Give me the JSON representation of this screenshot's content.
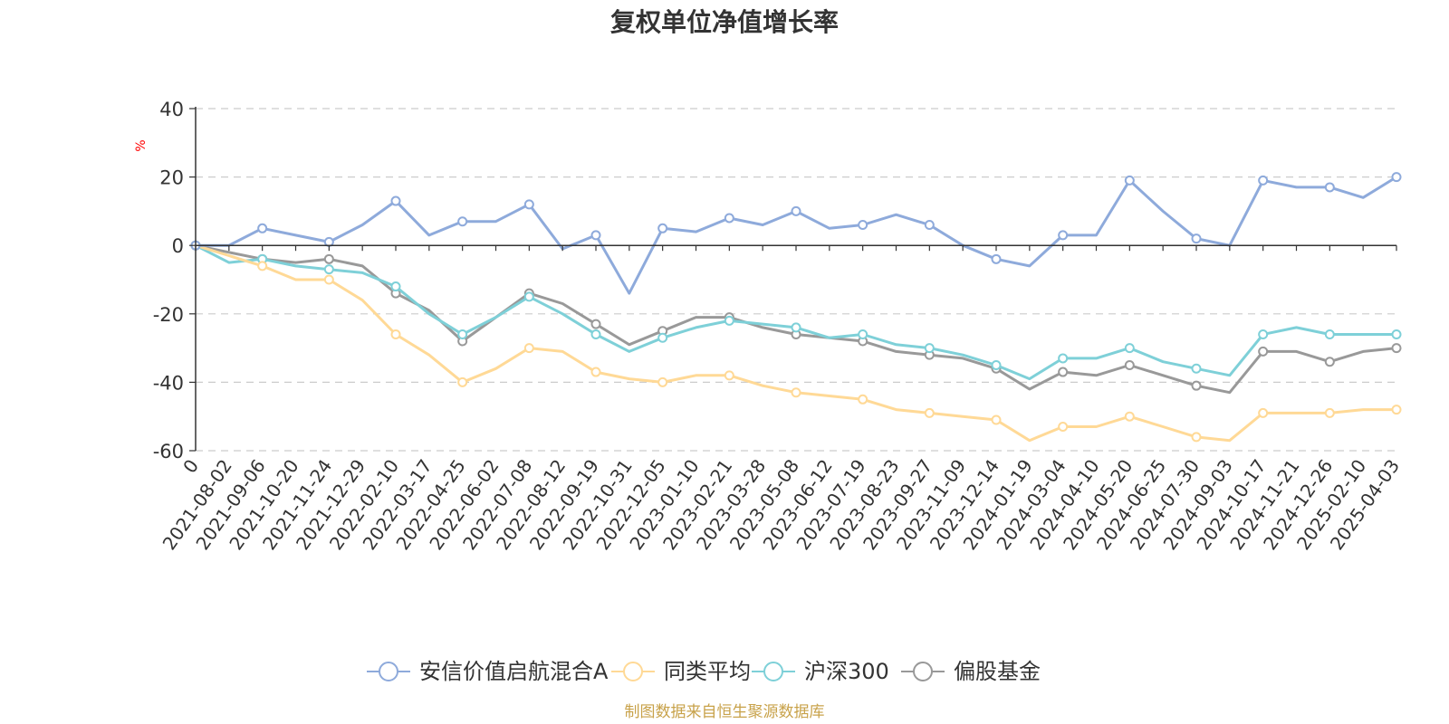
{
  "chart_data": {
    "type": "line",
    "title": "复权单位净值增长率",
    "ylabel": "%",
    "ylim": [
      -60,
      40
    ],
    "yticks": [
      40,
      20,
      0,
      -20,
      -40,
      -60
    ],
    "categories": [
      "0",
      "2021-08-02",
      "2021-09-06",
      "2021-10-20",
      "2021-11-24",
      "2021-12-29",
      "2022-02-10",
      "2022-03-17",
      "2022-04-25",
      "2022-06-02",
      "2022-07-08",
      "2022-08-12",
      "2022-09-19",
      "2022-10-31",
      "2022-12-05",
      "2023-01-10",
      "2023-02-21",
      "2023-03-28",
      "2023-05-08",
      "2023-06-12",
      "2023-07-19",
      "2023-08-23",
      "2023-09-27",
      "2023-11-09",
      "2023-12-14",
      "2024-01-19",
      "2024-03-04",
      "2024-04-10",
      "2024-05-20",
      "2024-06-25",
      "2024-07-30",
      "2024-09-03",
      "2024-10-17",
      "2024-11-21",
      "2024-12-26",
      "2025-02-10",
      "2025-04-03"
    ],
    "series": [
      {
        "name": "安信价值启航混合A",
        "color": "#8eaadb",
        "values": [
          0,
          0,
          5,
          3,
          1,
          6,
          13,
          3,
          7,
          7,
          12,
          -1,
          3,
          -14,
          5,
          4,
          8,
          6,
          10,
          5,
          6,
          9,
          6,
          0,
          -4,
          -6,
          3,
          3,
          19,
          10,
          2,
          0,
          19,
          17,
          17,
          14,
          20
        ]
      },
      {
        "name": "同类平均",
        "color": "#ffd996",
        "values": [
          0,
          -3,
          -6,
          -10,
          -10,
          -16,
          -26,
          -32,
          -40,
          -36,
          -30,
          -31,
          -37,
          -39,
          -40,
          -38,
          -38,
          -41,
          -43,
          -44,
          -45,
          -48,
          -49,
          -50,
          -51,
          -57,
          -53,
          -53,
          -50,
          -53,
          -56,
          -57,
          -49,
          -49,
          -49,
          -48,
          -48
        ]
      },
      {
        "name": "沪深300",
        "color": "#7ed0d8",
        "values": [
          0,
          -5,
          -4,
          -6,
          -7,
          -8,
          -12,
          -20,
          -26,
          -21,
          -15,
          -20,
          -26,
          -31,
          -27,
          -24,
          -22,
          -23,
          -24,
          -27,
          -26,
          -29,
          -30,
          -32,
          -35,
          -39,
          -33,
          -33,
          -30,
          -34,
          -36,
          -38,
          -26,
          -24,
          -26,
          -26,
          -26
        ]
      },
      {
        "name": "偏股基金",
        "color": "#999999",
        "values": [
          0,
          -2,
          -4,
          -5,
          -4,
          -6,
          -14,
          -19,
          -28,
          -21,
          -14,
          -17,
          -23,
          -29,
          -25,
          -21,
          -21,
          -24,
          -26,
          -27,
          -28,
          -31,
          -32,
          -33,
          -36,
          -42,
          -37,
          -38,
          -35,
          -38,
          -41,
          -43,
          -31,
          -31,
          -34,
          -31,
          -30
        ]
      }
    ]
  },
  "footer": {
    "source": "制图数据来自恒生聚源数据库"
  },
  "colors": {
    "title": "#333333",
    "axis": "#333333",
    "grid": "#cccccc",
    "ylabel": "#ff0000",
    "source": "#c8a24a"
  }
}
